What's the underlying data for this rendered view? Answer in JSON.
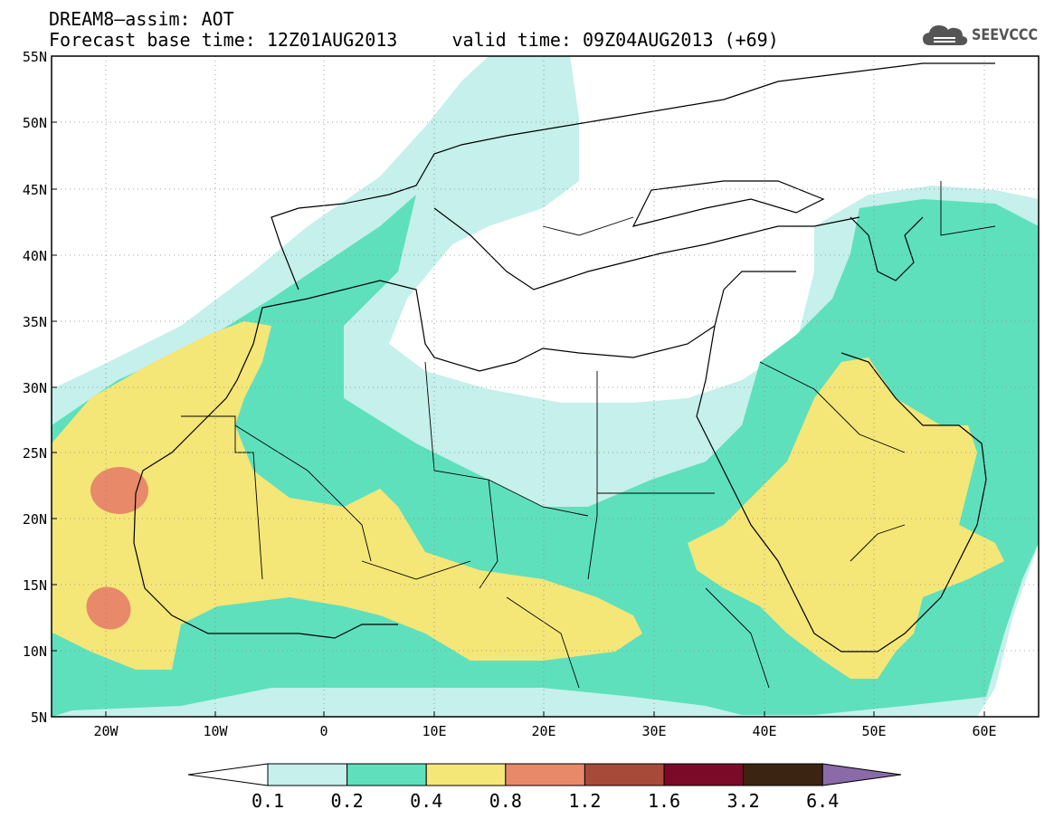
{
  "title": {
    "line1": "DREAM8–assim: AOT",
    "line2": "Forecast base time: 12Z01AUG2013     valid time: 09Z04AUG2013 (+69)"
  },
  "logo": {
    "text": "SEEVCCC",
    "icon": "cloud-icon",
    "color": "#555555"
  },
  "map": {
    "lat_labels": [
      "55N",
      "50N",
      "45N",
      "40N",
      "35N",
      "30N",
      "25N",
      "20N",
      "15N",
      "10N",
      "5N"
    ],
    "lon_labels": [
      "20W",
      "10W",
      "0",
      "10E",
      "20E",
      "30E",
      "40E",
      "50E",
      "60E"
    ],
    "grid": true
  },
  "legend": {
    "bounds": [
      "0.1",
      "0.2",
      "0.4",
      "0.8",
      "1.2",
      "1.6",
      "3.2",
      "6.4"
    ],
    "colors": [
      "#ffffff",
      "#c5f0ec",
      "#5ee0bd",
      "#f5e678",
      "#e8896a",
      "#a84a3a",
      "#7a0a28",
      "#3b2412",
      "#8a6aa8"
    ]
  }
}
